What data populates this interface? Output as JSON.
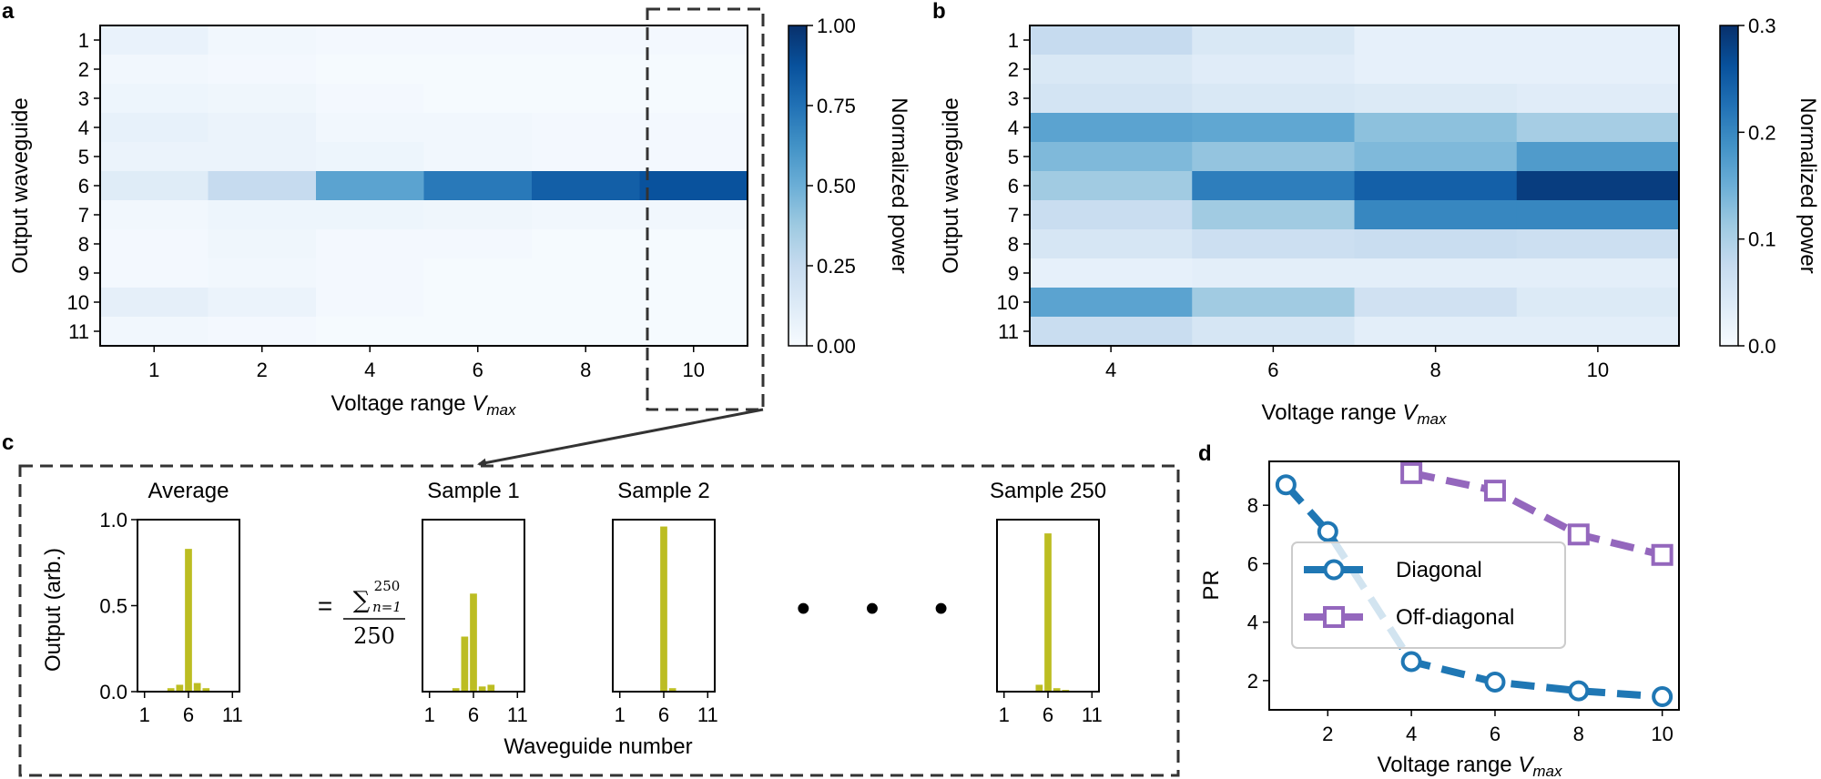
{
  "panels": {
    "a": "a",
    "b": "b",
    "c": "c",
    "d": "d"
  },
  "chart_data": [
    {
      "id": "a",
      "type": "heatmap",
      "xlabel": "Voltage range ",
      "xlabel_var": "V",
      "xlabel_sub": "max",
      "ylabel": "Output waveguide",
      "x_categories": [
        "1",
        "2",
        "4",
        "6",
        "8",
        "10"
      ],
      "y_categories": [
        "1",
        "2",
        "3",
        "4",
        "5",
        "6",
        "7",
        "8",
        "9",
        "10",
        "11"
      ],
      "values": [
        [
          0.07,
          0.03,
          0.02,
          0.02,
          0.02,
          0.02
        ],
        [
          0.03,
          0.02,
          0.01,
          0.01,
          0.01,
          0.01
        ],
        [
          0.05,
          0.04,
          0.02,
          0.01,
          0.01,
          0.01
        ],
        [
          0.08,
          0.06,
          0.03,
          0.03,
          0.02,
          0.02
        ],
        [
          0.06,
          0.06,
          0.05,
          0.03,
          0.02,
          0.02
        ],
        [
          0.12,
          0.25,
          0.55,
          0.72,
          0.82,
          0.87
        ],
        [
          0.03,
          0.05,
          0.05,
          0.04,
          0.03,
          0.03
        ],
        [
          0.02,
          0.04,
          0.02,
          0.02,
          0.01,
          0.01
        ],
        [
          0.02,
          0.03,
          0.02,
          0.01,
          0.01,
          0.01
        ],
        [
          0.09,
          0.06,
          0.02,
          0.01,
          0.01,
          0.01
        ],
        [
          0.03,
          0.02,
          0.01,
          0.01,
          0.01,
          0.01
        ]
      ],
      "colorbar": {
        "label": "Normalized power",
        "range": [
          0.0,
          1.0
        ],
        "ticks": [
          "0.00",
          "0.25",
          "0.50",
          "0.75",
          "1.00"
        ]
      }
    },
    {
      "id": "b",
      "type": "heatmap",
      "xlabel": "Voltage range ",
      "xlabel_var": "V",
      "xlabel_sub": "max",
      "ylabel": "Output waveguide",
      "x_categories": [
        "4",
        "6",
        "8",
        "10"
      ],
      "y_categories": [
        "1",
        "2",
        "3",
        "4",
        "5",
        "6",
        "7",
        "8",
        "9",
        "10",
        "11"
      ],
      "values": [
        [
          0.075,
          0.045,
          0.025,
          0.025
        ],
        [
          0.045,
          0.035,
          0.025,
          0.025
        ],
        [
          0.055,
          0.045,
          0.04,
          0.035
        ],
        [
          0.165,
          0.16,
          0.125,
          0.105
        ],
        [
          0.135,
          0.12,
          0.135,
          0.175
        ],
        [
          0.11,
          0.21,
          0.245,
          0.285
        ],
        [
          0.07,
          0.11,
          0.2,
          0.2
        ],
        [
          0.05,
          0.065,
          0.07,
          0.065
        ],
        [
          0.025,
          0.03,
          0.03,
          0.03
        ],
        [
          0.165,
          0.11,
          0.06,
          0.04
        ],
        [
          0.07,
          0.05,
          0.03,
          0.03
        ]
      ],
      "colorbar": {
        "label": "Normalized power",
        "range": [
          0.0,
          0.3
        ],
        "ticks": [
          "0.0",
          "0.1",
          "0.2",
          "0.3"
        ]
      }
    },
    {
      "id": "c",
      "type": "bar",
      "ylabel": "Output (arb.)",
      "xlabel": "Waveguide number",
      "x_ticks": [
        "1",
        "6",
        "11"
      ],
      "y_ticks": [
        "0.0",
        "0.5",
        "1.0"
      ],
      "ylim": [
        0,
        1.0
      ],
      "equation": {
        "equals": "=",
        "sum": "∑",
        "upper": "250",
        "lower": "n=1",
        "denominator": "250"
      },
      "ellipsis": "• • •",
      "series": [
        {
          "name": "Average",
          "values": [
            0,
            0,
            0,
            0.02,
            0.04,
            0.83,
            0.05,
            0.02,
            0,
            0,
            0
          ]
        },
        {
          "name": "Sample 1",
          "values": [
            0,
            0,
            0,
            0.02,
            0.32,
            0.57,
            0.03,
            0.04,
            0,
            0,
            0
          ]
        },
        {
          "name": "Sample 2",
          "values": [
            0,
            0,
            0,
            0,
            0,
            0.96,
            0.02,
            0,
            0,
            0,
            0
          ]
        },
        {
          "name": "Sample 250",
          "values": [
            0,
            0,
            0,
            0,
            0.04,
            0.92,
            0.02,
            0.01,
            0,
            0,
            0
          ]
        }
      ]
    },
    {
      "id": "d",
      "type": "line",
      "xlabel": "Voltage range ",
      "xlabel_var": "V",
      "xlabel_sub": "max",
      "ylabel": "PR",
      "xlim": [
        0.6,
        10.4
      ],
      "ylim": [
        1.0,
        9.5
      ],
      "x_ticks": [
        "2",
        "4",
        "6",
        "8",
        "10"
      ],
      "y_ticks": [
        "2",
        "4",
        "6",
        "8"
      ],
      "series": [
        {
          "name": "Diagonal",
          "color": "#1f77b4",
          "marker": "circle",
          "x": [
            1,
            2,
            4,
            6,
            8,
            10
          ],
          "y": [
            8.7,
            7.1,
            2.65,
            1.95,
            1.65,
            1.45
          ]
        },
        {
          "name": "Off-diagonal",
          "color": "#9467bd",
          "marker": "square",
          "x": [
            4,
            6,
            8,
            10
          ],
          "y": [
            9.1,
            8.5,
            7.0,
            6.3
          ]
        }
      ]
    }
  ],
  "colors": {
    "bar": "#bcbd22",
    "line": "#333333",
    "heat_low": "#f7fbff",
    "heat_high": "#08306b"
  }
}
